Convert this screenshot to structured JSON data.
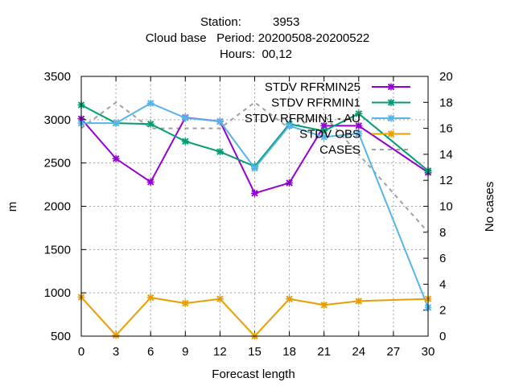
{
  "chart_data": {
    "type": "line",
    "title": {
      "station_label": "Station:",
      "station_value": "3953",
      "line2": "Cloud base   Period: 20200508-20200522",
      "line3": "Hours:  00,12"
    },
    "xlabel": "Forecast length",
    "ylabel": "m",
    "y2label": "No cases",
    "xlim": [
      0,
      30
    ],
    "ylim": [
      500,
      3500
    ],
    "y2lim": [
      0,
      20
    ],
    "x_ticks": [
      0,
      3,
      6,
      9,
      12,
      15,
      18,
      21,
      24,
      27,
      30
    ],
    "y_ticks": [
      500,
      1000,
      1500,
      2000,
      2500,
      3000,
      3500
    ],
    "y2_ticks": [
      0,
      2,
      4,
      6,
      8,
      10,
      12,
      14,
      16,
      18,
      20
    ],
    "grid": true,
    "legend_position": "top-right",
    "series": [
      {
        "name": "STDV RFRMIN25",
        "color": "#9400d3",
        "marker": "x",
        "x": [
          0,
          3,
          6,
          9,
          12,
          15,
          18,
          21,
          24,
          30
        ],
        "y": [
          3010,
          2550,
          2280,
          3025,
          2980,
          2150,
          2270,
          2930,
          2930,
          2390
        ]
      },
      {
        "name": "STDV RFRMIN1",
        "color": "#009e73",
        "marker": "x",
        "x": [
          0,
          3,
          6,
          9,
          12,
          15,
          18,
          21,
          24,
          30
        ],
        "y": [
          3170,
          2960,
          2950,
          2750,
          2630,
          2460,
          2950,
          2870,
          3070,
          2410
        ]
      },
      {
        "name": "STDV RFRMIN1 - AU",
        "color": "#56b4e9",
        "marker": "x",
        "x": [
          0,
          3,
          6,
          9,
          12,
          15,
          18,
          21,
          24,
          30
        ],
        "y": [
          2960,
          2960,
          3190,
          3020,
          2980,
          2440,
          2930,
          2800,
          2840,
          830
        ]
      },
      {
        "name": "STDV OBS",
        "color": "#e69f00",
        "marker": "x",
        "x": [
          0,
          3,
          6,
          9,
          12,
          15,
          18,
          21,
          24,
          30
        ],
        "y": [
          950,
          510,
          945,
          880,
          930,
          500,
          930,
          860,
          905,
          930
        ]
      },
      {
        "name": "CASES",
        "color": "#a0a0a0",
        "axis": "y2",
        "dashed": true,
        "x": [
          0,
          3,
          6,
          9,
          12,
          15,
          18,
          21,
          24,
          30
        ],
        "y": [
          16,
          18,
          16,
          16,
          16,
          18,
          16,
          17,
          14,
          8
        ]
      }
    ]
  }
}
